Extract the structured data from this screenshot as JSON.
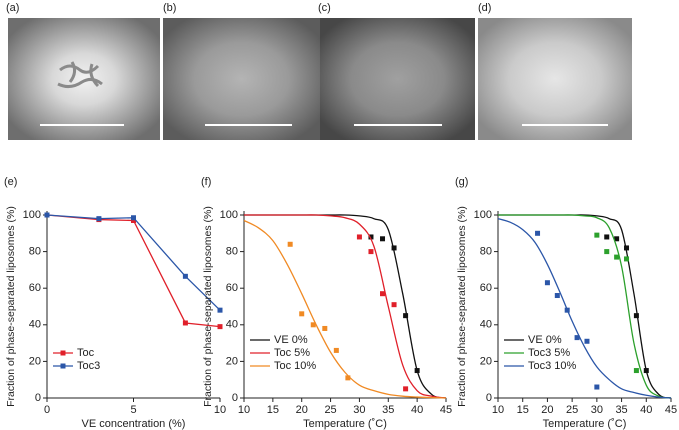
{
  "images": [
    {
      "label": "(a)"
    },
    {
      "label": "(b)"
    },
    {
      "label": "(c)"
    },
    {
      "label": "(d)"
    }
  ],
  "chart_data": [
    {
      "type": "line",
      "panel_label": "(e)",
      "xlabel": "VE concentration (%)",
      "ylabel": "Fraction of phase-separated liposomes (%)",
      "xlim": [
        0,
        10
      ],
      "xticks": [
        0,
        5,
        10
      ],
      "ylim": [
        0,
        100
      ],
      "yticks": [
        0,
        20,
        40,
        60,
        80,
        100
      ],
      "legend": "lower left",
      "series": [
        {
          "name": "Toc",
          "color": "#e0202a",
          "x": [
            0,
            3,
            5,
            8,
            10
          ],
          "values": [
            100,
            97.5,
            97,
            41,
            39
          ]
        },
        {
          "name": "Toc3",
          "color": "#2b56a8",
          "x": [
            0,
            3,
            5,
            8,
            10
          ],
          "values": [
            100,
            98,
            98.5,
            66.5,
            48
          ]
        }
      ]
    },
    {
      "type": "scatter",
      "panel_label": "(f)",
      "xlabel": "Temperature (˚C)",
      "ylabel": "Fraction of phase-separated liposomes (%)",
      "xlim": [
        10,
        45
      ],
      "xticks": [
        10,
        15,
        20,
        25,
        30,
        35,
        40,
        45
      ],
      "ylim": [
        0,
        100
      ],
      "yticks": [
        0,
        20,
        40,
        60,
        80,
        100
      ],
      "legend": "lower left",
      "series": [
        {
          "name": "VE 0%",
          "color": "#111111",
          "x": [
            32,
            34,
            36,
            38,
            40
          ],
          "values": [
            88,
            87,
            82,
            45,
            15
          ],
          "fit_x": [
            10,
            12.5,
            15,
            17.5,
            20,
            22.5,
            25,
            27.5,
            30,
            32.5,
            35,
            37.5,
            40,
            42.5,
            45
          ],
          "fit_values": [
            100,
            100,
            100,
            100,
            100,
            100,
            100,
            100,
            99.5,
            98,
            92,
            57,
            15,
            2,
            0
          ]
        },
        {
          "name": "Toc 5%",
          "color": "#e0202a",
          "x": [
            30,
            32,
            34,
            36,
            38
          ],
          "values": [
            88,
            80,
            57,
            51,
            5
          ],
          "fit_x": [
            10,
            12.5,
            15,
            17.5,
            20,
            22.5,
            25,
            27.5,
            30,
            32.5,
            35,
            37.5,
            40,
            42.5,
            45
          ],
          "fit_values": [
            100,
            100,
            100,
            100,
            100,
            100,
            99.5,
            98.5,
            95,
            83,
            50,
            18,
            4,
            1,
            0
          ]
        },
        {
          "name": "Toc 10%",
          "color": "#f08a24",
          "x": [
            18,
            20,
            22,
            24,
            26,
            28
          ],
          "values": [
            84,
            46,
            40,
            38,
            26,
            11
          ],
          "fit_x": [
            10,
            12.5,
            15,
            17.5,
            20,
            22.5,
            25,
            27.5,
            30,
            32.5,
            35,
            37.5,
            40,
            42.5,
            45
          ],
          "fit_values": [
            97,
            93,
            86,
            73,
            57,
            40,
            25,
            14,
            7,
            4,
            2,
            1,
            0.5,
            0.2,
            0
          ]
        }
      ]
    },
    {
      "type": "scatter",
      "panel_label": "(g)",
      "xlabel": "Temperature (˚C)",
      "ylabel": "Fraction of phase-separated liposomes (%)",
      "xlim": [
        10,
        45
      ],
      "xticks": [
        10,
        15,
        20,
        25,
        30,
        35,
        40,
        45
      ],
      "ylim": [
        0,
        100
      ],
      "yticks": [
        0,
        20,
        40,
        60,
        80,
        100
      ],
      "legend": "lower left",
      "series": [
        {
          "name": "VE 0%",
          "color": "#111111",
          "x": [
            32,
            34,
            36,
            38,
            40
          ],
          "values": [
            88,
            87,
            82,
            45,
            15
          ],
          "fit_x": [
            10,
            12.5,
            15,
            17.5,
            20,
            22.5,
            25,
            27.5,
            30,
            32.5,
            35,
            37.5,
            40,
            42.5,
            45
          ],
          "fit_values": [
            100,
            100,
            100,
            100,
            100,
            100,
            100,
            100,
            99.5,
            98,
            92,
            57,
            15,
            2,
            0
          ]
        },
        {
          "name": "Toc3 5%",
          "color": "#2ca02c",
          "x": [
            30,
            32,
            34,
            36,
            38
          ],
          "values": [
            89,
            80,
            77,
            76,
            15
          ],
          "fit_x": [
            10,
            12.5,
            15,
            17.5,
            20,
            22.5,
            25,
            27.5,
            30,
            32.5,
            35,
            37.5,
            40,
            42.5,
            45
          ],
          "fit_values": [
            100,
            100,
            100,
            100,
            100,
            100,
            100,
            99.5,
            98.5,
            93,
            72,
            30,
            7,
            1,
            0
          ]
        },
        {
          "name": "Toc3 10%",
          "color": "#2b56a8",
          "x": [
            18,
            20,
            22,
            24,
            26,
            28,
            30
          ],
          "values": [
            90,
            63,
            56,
            48,
            33,
            31,
            6
          ],
          "fit_x": [
            10,
            12.5,
            15,
            17.5,
            20,
            22.5,
            25,
            27.5,
            30,
            32.5,
            35,
            37.5,
            40,
            42.5,
            45
          ],
          "fit_values": [
            98,
            96,
            92,
            85,
            73,
            58,
            42,
            28,
            17,
            10,
            5,
            3,
            1.5,
            0.5,
            0
          ]
        }
      ]
    }
  ]
}
